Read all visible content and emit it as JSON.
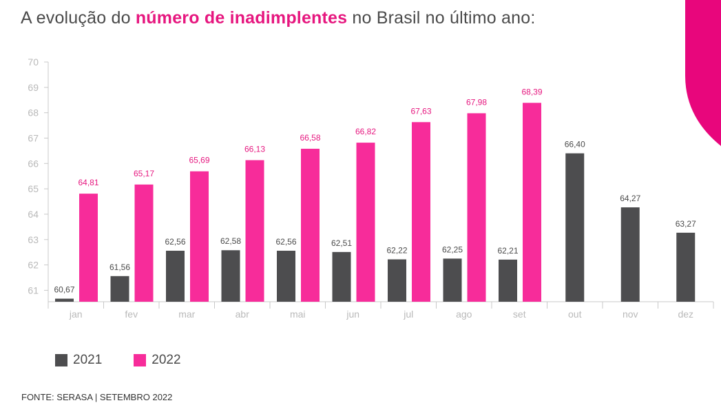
{
  "headline": {
    "prefix": "A evolução do ",
    "highlight": "número de inadimplentes",
    "suffix": " no Brasil no último ano:"
  },
  "colors": {
    "series_2021": "#4d4d4f",
    "series_2022": "#f72c9a",
    "highlight": "#e6177f",
    "axis": "#c8c8c8",
    "tick_text": "#b9b9b9",
    "value_2021": "#4a4a4a",
    "value_2022": "#e6177f",
    "corner": "#e8067c"
  },
  "chart_data": {
    "type": "bar",
    "categories": [
      "jan",
      "fev",
      "mar",
      "abr",
      "mai",
      "jun",
      "jul",
      "ago",
      "set",
      "out",
      "nov",
      "dez"
    ],
    "series": [
      {
        "name": "2021",
        "values": [
          60.67,
          61.56,
          62.56,
          62.58,
          62.56,
          62.51,
          62.22,
          62.25,
          62.21,
          66.4,
          64.27,
          63.27
        ],
        "labels": [
          "60,67",
          "61,56",
          "62,56",
          "62,58",
          "62,56",
          "62,51",
          "62,22",
          "62,25",
          "62,21",
          "66,40",
          "64,27",
          "63,27"
        ]
      },
      {
        "name": "2022",
        "values": [
          64.81,
          65.17,
          65.69,
          66.13,
          66.58,
          66.82,
          67.63,
          67.98,
          68.39,
          null,
          null,
          null
        ],
        "labels": [
          "64,81",
          "65,17",
          "65,69",
          "66,13",
          "66,58",
          "66,82",
          "67,63",
          "67,98",
          "68,39",
          null,
          null,
          null
        ]
      }
    ],
    "ylim": [
      60,
      70
    ],
    "yticks": [
      "61",
      "62",
      "63",
      "64",
      "65",
      "66",
      "67",
      "68",
      "69",
      "70"
    ],
    "xlabel": "",
    "ylabel": "",
    "grid": false,
    "legend": {
      "position": "bottom-left",
      "labels": [
        "2021",
        "2022"
      ]
    }
  },
  "source": "FONTE: SERASA |  SETEMBRO 2022"
}
